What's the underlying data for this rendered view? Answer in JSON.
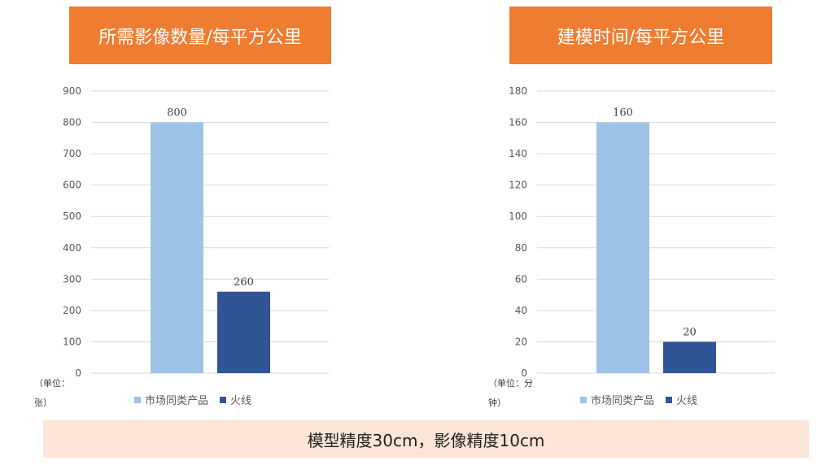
{
  "colors": {
    "title_bg": "#EE7D31",
    "series_market": "#9DC3E6",
    "series_huoxian": "#2F5597",
    "footer_bg": "#FBE5D6",
    "grid": "#D9D9D9"
  },
  "legend": [
    "市场同类产品",
    "火线"
  ],
  "footer": "模型精度30cm，影像精度10cm",
  "chart_data": [
    {
      "type": "bar",
      "title": "所需影像数量/每平方公里",
      "unit_label": "（单位：\n张）",
      "categories": [
        "市场同类产品",
        "火线"
      ],
      "values": [
        800,
        260
      ],
      "ylim": [
        0,
        900
      ],
      "yticks": [
        0,
        100,
        200,
        300,
        400,
        500,
        600,
        700,
        800,
        900
      ],
      "grid": true,
      "legend_position": "bottom"
    },
    {
      "type": "bar",
      "title": "建模时间/每平方公里",
      "unit_label": "（单位：分\n钟）",
      "categories": [
        "市场同类产品",
        "火线"
      ],
      "values": [
        160,
        20
      ],
      "ylim": [
        0,
        180
      ],
      "yticks": [
        0,
        20,
        40,
        60,
        80,
        100,
        120,
        140,
        160,
        180
      ],
      "grid": true,
      "legend_position": "bottom"
    }
  ]
}
